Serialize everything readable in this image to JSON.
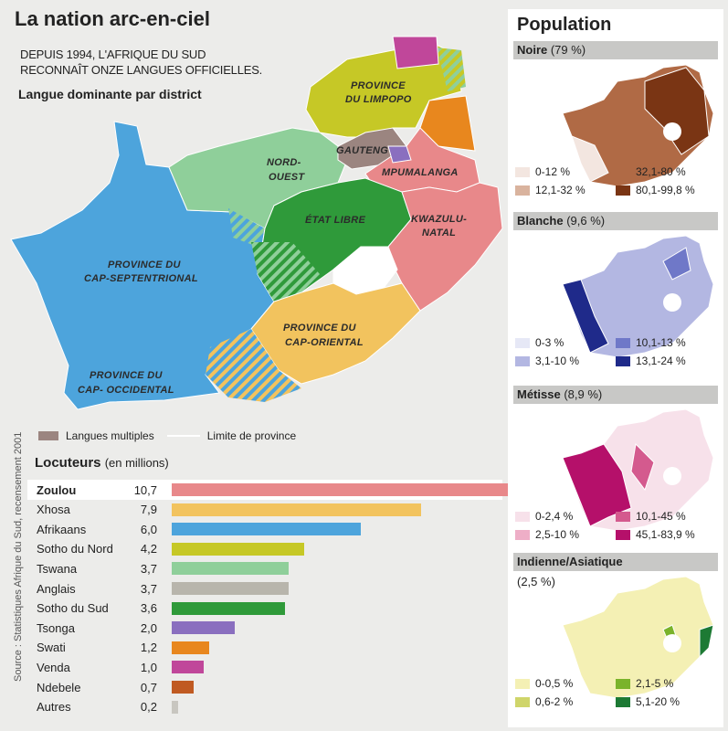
{
  "title": "La nation arc-en-ciel",
  "subtitle_line1": "DEPUIS 1994, L'AFRIQUE DU SUD",
  "subtitle_line2": "RECONNAÎT ONZE LANGUES OFFICIELLES.",
  "subtitle_bold": "Langue dominante par district",
  "provinces": {
    "limpopo_1": "PROVINCE",
    "limpopo_2": "DU LIMPOPO",
    "nord_ouest_1": "NORD-",
    "nord_ouest_2": "OUEST",
    "gauteng": "GAUTENG",
    "mpumalanga": "MPUMALANGA",
    "etat_libre": "ÉTAT LIBRE",
    "kwazulu_1": "KWAZULU-",
    "kwazulu_2": "NATAL",
    "cap_sept_1": "PROVINCE DU",
    "cap_sept_2": "CAP-SEPTENTRIONAL",
    "cap_or_1": "PROVINCE DU",
    "cap_or_2": "CAP-ORIENTAL",
    "cap_occ_1": "PROVINCE DU",
    "cap_occ_2": "CAP- OCCIDENTAL"
  },
  "legend": {
    "multiples": "Langues multiples",
    "limite": "Limite de province"
  },
  "source": "Source : Statistiques Afrique du Sud, recensement 2001",
  "locuteurs_title": "Locuteurs",
  "locuteurs_unit": "(en millions)",
  "chart_data": {
    "type": "bar",
    "categories": [
      "Zoulou",
      "Xhosa",
      "Afrikaans",
      "Sotho du Nord",
      "Tswana",
      "Anglais",
      "Sotho du Sud",
      "Tsonga",
      "Swati",
      "Venda",
      "Ndebele",
      "Autres"
    ],
    "labels": [
      "10,7",
      "7,9",
      "6,0",
      "4,2",
      "3,7",
      "3,7",
      "3,6",
      "2,0",
      "1,2",
      "1,0",
      "0,7",
      "0,2"
    ],
    "values": [
      10.7,
      7.9,
      6.0,
      4.2,
      3.7,
      3.7,
      3.6,
      2.0,
      1.2,
      1.0,
      0.7,
      0.2
    ],
    "colors": [
      "#e8888a",
      "#f2c35e",
      "#4da4dc",
      "#c6c826",
      "#8fcf9a",
      "#b8b5ac",
      "#2f9a3a",
      "#8a6fbf",
      "#e8871e",
      "#c0479a",
      "#c05a22",
      "#c8c6c0"
    ]
  },
  "population": {
    "title": "Population",
    "noire": {
      "label": "Noire",
      "pct": "(79 %)",
      "legend": [
        "0-12 %",
        "12,1-32 %",
        "32,1-80 %",
        "80,1-99,8 %"
      ],
      "colors": [
        "#f3e6e0",
        "#d9b39e",
        "#b06a45",
        "#7a3514"
      ]
    },
    "blanche": {
      "label": "Blanche",
      "pct": "(9,6 %)",
      "legend": [
        "0-3 %",
        "3,1-10 %",
        "10,1-13 %",
        "13,1-24 %"
      ],
      "colors": [
        "#e6e8f6",
        "#b3b7e2",
        "#6f78c8",
        "#1f2a8a"
      ]
    },
    "metisse": {
      "label": "Métisse",
      "pct": "(8,9 %)",
      "legend": [
        "0-2,4 %",
        "2,5-10 %",
        "10,1-45 %",
        "45,1-83,9 %"
      ],
      "colors": [
        "#f7e1ea",
        "#eeaec7",
        "#d45a8e",
        "#b5106a"
      ]
    },
    "indienne": {
      "label": "Indienne/Asiatique",
      "pct": "(2,5 %)",
      "legend": [
        "0-0,5 %",
        "0,6-2 %",
        "2,1-5 %",
        "5,1-20 %"
      ],
      "colors": [
        "#f4f0b4",
        "#cfd56a",
        "#7ab32a",
        "#1d7a34"
      ]
    }
  }
}
